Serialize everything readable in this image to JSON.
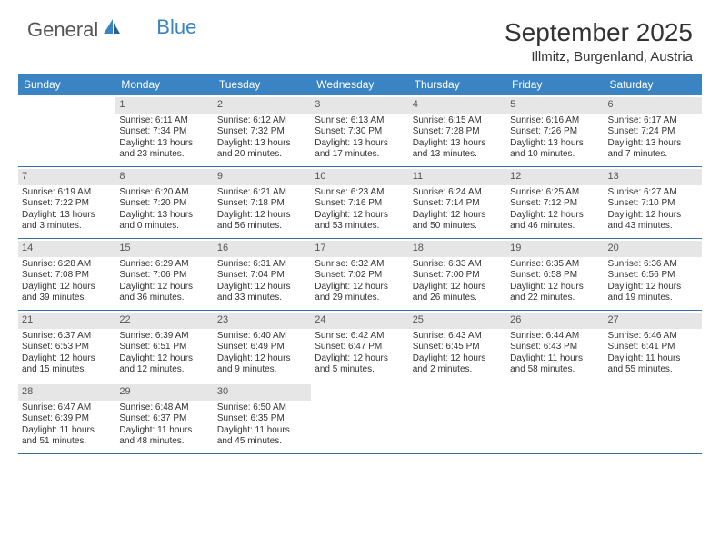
{
  "logo": {
    "general": "General",
    "blue": "Blue"
  },
  "title": "September 2025",
  "location": "Illmitz, Burgenland, Austria",
  "colors": {
    "brand_blue": "#3a84c4",
    "border_blue": "#3a6a9c",
    "day_bar_bg": "#e6e6e6",
    "text": "#333333"
  },
  "dayHeaders": [
    "Sunday",
    "Monday",
    "Tuesday",
    "Wednesday",
    "Thursday",
    "Friday",
    "Saturday"
  ],
  "weeks": [
    [
      null,
      {
        "n": "1",
        "sr": "Sunrise: 6:11 AM",
        "ss": "Sunset: 7:34 PM",
        "d1": "Daylight: 13 hours",
        "d2": "and 23 minutes."
      },
      {
        "n": "2",
        "sr": "Sunrise: 6:12 AM",
        "ss": "Sunset: 7:32 PM",
        "d1": "Daylight: 13 hours",
        "d2": "and 20 minutes."
      },
      {
        "n": "3",
        "sr": "Sunrise: 6:13 AM",
        "ss": "Sunset: 7:30 PM",
        "d1": "Daylight: 13 hours",
        "d2": "and 17 minutes."
      },
      {
        "n": "4",
        "sr": "Sunrise: 6:15 AM",
        "ss": "Sunset: 7:28 PM",
        "d1": "Daylight: 13 hours",
        "d2": "and 13 minutes."
      },
      {
        "n": "5",
        "sr": "Sunrise: 6:16 AM",
        "ss": "Sunset: 7:26 PM",
        "d1": "Daylight: 13 hours",
        "d2": "and 10 minutes."
      },
      {
        "n": "6",
        "sr": "Sunrise: 6:17 AM",
        "ss": "Sunset: 7:24 PM",
        "d1": "Daylight: 13 hours",
        "d2": "and 7 minutes."
      }
    ],
    [
      {
        "n": "7",
        "sr": "Sunrise: 6:19 AM",
        "ss": "Sunset: 7:22 PM",
        "d1": "Daylight: 13 hours",
        "d2": "and 3 minutes."
      },
      {
        "n": "8",
        "sr": "Sunrise: 6:20 AM",
        "ss": "Sunset: 7:20 PM",
        "d1": "Daylight: 13 hours",
        "d2": "and 0 minutes."
      },
      {
        "n": "9",
        "sr": "Sunrise: 6:21 AM",
        "ss": "Sunset: 7:18 PM",
        "d1": "Daylight: 12 hours",
        "d2": "and 56 minutes."
      },
      {
        "n": "10",
        "sr": "Sunrise: 6:23 AM",
        "ss": "Sunset: 7:16 PM",
        "d1": "Daylight: 12 hours",
        "d2": "and 53 minutes."
      },
      {
        "n": "11",
        "sr": "Sunrise: 6:24 AM",
        "ss": "Sunset: 7:14 PM",
        "d1": "Daylight: 12 hours",
        "d2": "and 50 minutes."
      },
      {
        "n": "12",
        "sr": "Sunrise: 6:25 AM",
        "ss": "Sunset: 7:12 PM",
        "d1": "Daylight: 12 hours",
        "d2": "and 46 minutes."
      },
      {
        "n": "13",
        "sr": "Sunrise: 6:27 AM",
        "ss": "Sunset: 7:10 PM",
        "d1": "Daylight: 12 hours",
        "d2": "and 43 minutes."
      }
    ],
    [
      {
        "n": "14",
        "sr": "Sunrise: 6:28 AM",
        "ss": "Sunset: 7:08 PM",
        "d1": "Daylight: 12 hours",
        "d2": "and 39 minutes."
      },
      {
        "n": "15",
        "sr": "Sunrise: 6:29 AM",
        "ss": "Sunset: 7:06 PM",
        "d1": "Daylight: 12 hours",
        "d2": "and 36 minutes."
      },
      {
        "n": "16",
        "sr": "Sunrise: 6:31 AM",
        "ss": "Sunset: 7:04 PM",
        "d1": "Daylight: 12 hours",
        "d2": "and 33 minutes."
      },
      {
        "n": "17",
        "sr": "Sunrise: 6:32 AM",
        "ss": "Sunset: 7:02 PM",
        "d1": "Daylight: 12 hours",
        "d2": "and 29 minutes."
      },
      {
        "n": "18",
        "sr": "Sunrise: 6:33 AM",
        "ss": "Sunset: 7:00 PM",
        "d1": "Daylight: 12 hours",
        "d2": "and 26 minutes."
      },
      {
        "n": "19",
        "sr": "Sunrise: 6:35 AM",
        "ss": "Sunset: 6:58 PM",
        "d1": "Daylight: 12 hours",
        "d2": "and 22 minutes."
      },
      {
        "n": "20",
        "sr": "Sunrise: 6:36 AM",
        "ss": "Sunset: 6:56 PM",
        "d1": "Daylight: 12 hours",
        "d2": "and 19 minutes."
      }
    ],
    [
      {
        "n": "21",
        "sr": "Sunrise: 6:37 AM",
        "ss": "Sunset: 6:53 PM",
        "d1": "Daylight: 12 hours",
        "d2": "and 15 minutes."
      },
      {
        "n": "22",
        "sr": "Sunrise: 6:39 AM",
        "ss": "Sunset: 6:51 PM",
        "d1": "Daylight: 12 hours",
        "d2": "and 12 minutes."
      },
      {
        "n": "23",
        "sr": "Sunrise: 6:40 AM",
        "ss": "Sunset: 6:49 PM",
        "d1": "Daylight: 12 hours",
        "d2": "and 9 minutes."
      },
      {
        "n": "24",
        "sr": "Sunrise: 6:42 AM",
        "ss": "Sunset: 6:47 PM",
        "d1": "Daylight: 12 hours",
        "d2": "and 5 minutes."
      },
      {
        "n": "25",
        "sr": "Sunrise: 6:43 AM",
        "ss": "Sunset: 6:45 PM",
        "d1": "Daylight: 12 hours",
        "d2": "and 2 minutes."
      },
      {
        "n": "26",
        "sr": "Sunrise: 6:44 AM",
        "ss": "Sunset: 6:43 PM",
        "d1": "Daylight: 11 hours",
        "d2": "and 58 minutes."
      },
      {
        "n": "27",
        "sr": "Sunrise: 6:46 AM",
        "ss": "Sunset: 6:41 PM",
        "d1": "Daylight: 11 hours",
        "d2": "and 55 minutes."
      }
    ],
    [
      {
        "n": "28",
        "sr": "Sunrise: 6:47 AM",
        "ss": "Sunset: 6:39 PM",
        "d1": "Daylight: 11 hours",
        "d2": "and 51 minutes."
      },
      {
        "n": "29",
        "sr": "Sunrise: 6:48 AM",
        "ss": "Sunset: 6:37 PM",
        "d1": "Daylight: 11 hours",
        "d2": "and 48 minutes."
      },
      {
        "n": "30",
        "sr": "Sunrise: 6:50 AM",
        "ss": "Sunset: 6:35 PM",
        "d1": "Daylight: 11 hours",
        "d2": "and 45 minutes."
      },
      null,
      null,
      null,
      null
    ]
  ]
}
